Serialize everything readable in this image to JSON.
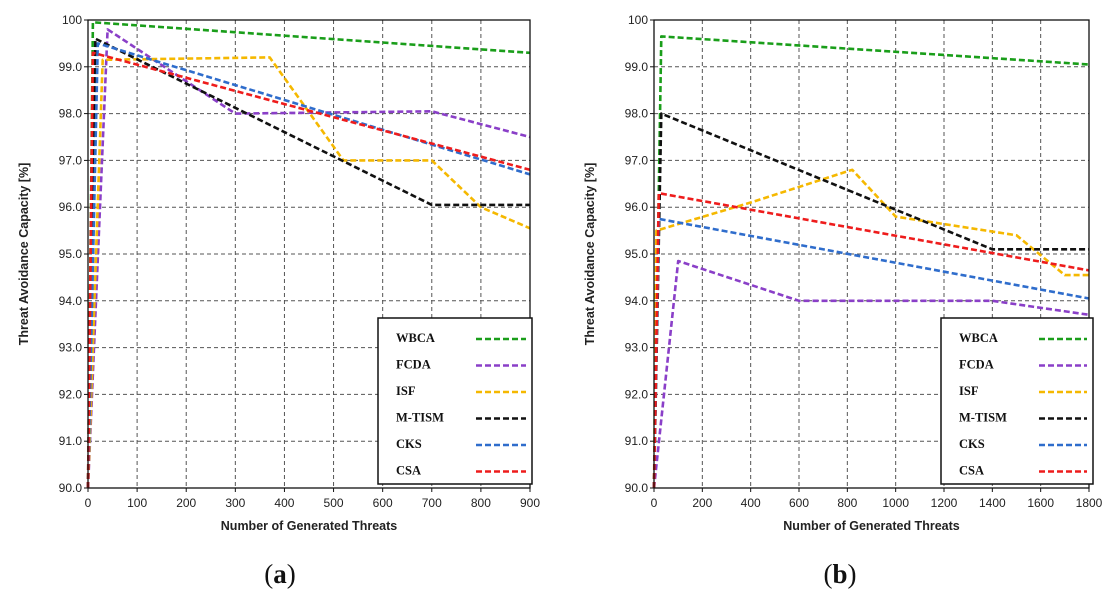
{
  "chart_data": [
    {
      "type": "line",
      "caption_open": "(",
      "caption_letter": "a",
      "caption_close": ")",
      "xlabel": "Number of  Generated Threats",
      "ylabel": "Threat Avoidance Capacity [%]",
      "xlim": [
        0,
        900
      ],
      "ylim": [
        90,
        100
      ],
      "xticks": [
        0,
        100,
        200,
        300,
        400,
        500,
        600,
        700,
        800,
        900
      ],
      "yticks": [
        90,
        91,
        92,
        93,
        94,
        95,
        96,
        97,
        98,
        99,
        100
      ],
      "ytick_labels": [
        "90.0",
        "91.0",
        "92.0",
        "93.0",
        "94.0",
        "95.0",
        "96.0",
        "97.0",
        "98.0",
        "99.0",
        "100"
      ],
      "series": [
        {
          "name": "WBCA",
          "color": "#1a9e1a",
          "x": [
            0,
            10,
            900
          ],
          "y": [
            90,
            99.95,
            99.3
          ]
        },
        {
          "name": "FCDA",
          "color": "#8a3fc8",
          "x": [
            0,
            40,
            300,
            700,
            900
          ],
          "y": [
            90,
            99.8,
            98.0,
            98.05,
            97.5
          ]
        },
        {
          "name": "ISF",
          "color": "#f5b800",
          "x": [
            0,
            30,
            370,
            520,
            700,
            800,
            900
          ],
          "y": [
            90,
            99.15,
            99.2,
            97.0,
            97.0,
            96.0,
            95.55
          ]
        },
        {
          "name": "M-TISM",
          "color": "#111111",
          "x": [
            0,
            15,
            700,
            900
          ],
          "y": [
            90,
            99.6,
            96.05,
            96.05
          ]
        },
        {
          "name": "CKS",
          "color": "#2f6dcc",
          "x": [
            0,
            20,
            900
          ],
          "y": [
            90,
            99.5,
            96.7
          ]
        },
        {
          "name": "CSA",
          "color": "#ee1c1c",
          "x": [
            0,
            10,
            900
          ],
          "y": [
            90,
            99.3,
            96.8
          ]
        }
      ],
      "legend_position": "bottom-right"
    },
    {
      "type": "line",
      "caption_open": "(",
      "caption_letter": "b",
      "caption_close": ")",
      "xlabel": "Number of  Generated Threats",
      "ylabel": "Threat Avoidance Capacity [%]",
      "xlim": [
        0,
        1800
      ],
      "ylim": [
        90,
        100
      ],
      "xticks": [
        0,
        200,
        400,
        600,
        800,
        1000,
        1200,
        1400,
        1600,
        1800
      ],
      "yticks": [
        90,
        91,
        92,
        93,
        94,
        95,
        96,
        97,
        98,
        99,
        100
      ],
      "ytick_labels": [
        "90.0",
        "91.0",
        "92.0",
        "93.0",
        "94.0",
        "95.0",
        "96.0",
        "97.0",
        "98.0",
        "99.0",
        "100"
      ],
      "series": [
        {
          "name": "WBCA",
          "color": "#1a9e1a",
          "x": [
            0,
            30,
            1800
          ],
          "y": [
            90,
            99.65,
            99.05
          ]
        },
        {
          "name": "FCDA",
          "color": "#8a3fc8",
          "x": [
            0,
            100,
            600,
            1400,
            1800
          ],
          "y": [
            90,
            94.85,
            94.0,
            94.0,
            93.7
          ]
        },
        {
          "name": "ISF",
          "color": "#f5b800",
          "x": [
            0,
            10,
            400,
            820,
            1000,
            1500,
            1700,
            1800
          ],
          "y": [
            90,
            95.5,
            96.1,
            96.8,
            95.8,
            95.4,
            94.55,
            94.55
          ]
        },
        {
          "name": "M-TISM",
          "color": "#111111",
          "x": [
            0,
            30,
            1400,
            1800
          ],
          "y": [
            90,
            98.0,
            95.1,
            95.1
          ]
        },
        {
          "name": "CKS",
          "color": "#2f6dcc",
          "x": [
            0,
            20,
            1800
          ],
          "y": [
            90,
            95.75,
            94.05
          ]
        },
        {
          "name": "CSA",
          "color": "#ee1c1c",
          "x": [
            0,
            20,
            1800
          ],
          "y": [
            90,
            96.3,
            94.65
          ]
        }
      ],
      "legend_position": "bottom-right"
    }
  ]
}
